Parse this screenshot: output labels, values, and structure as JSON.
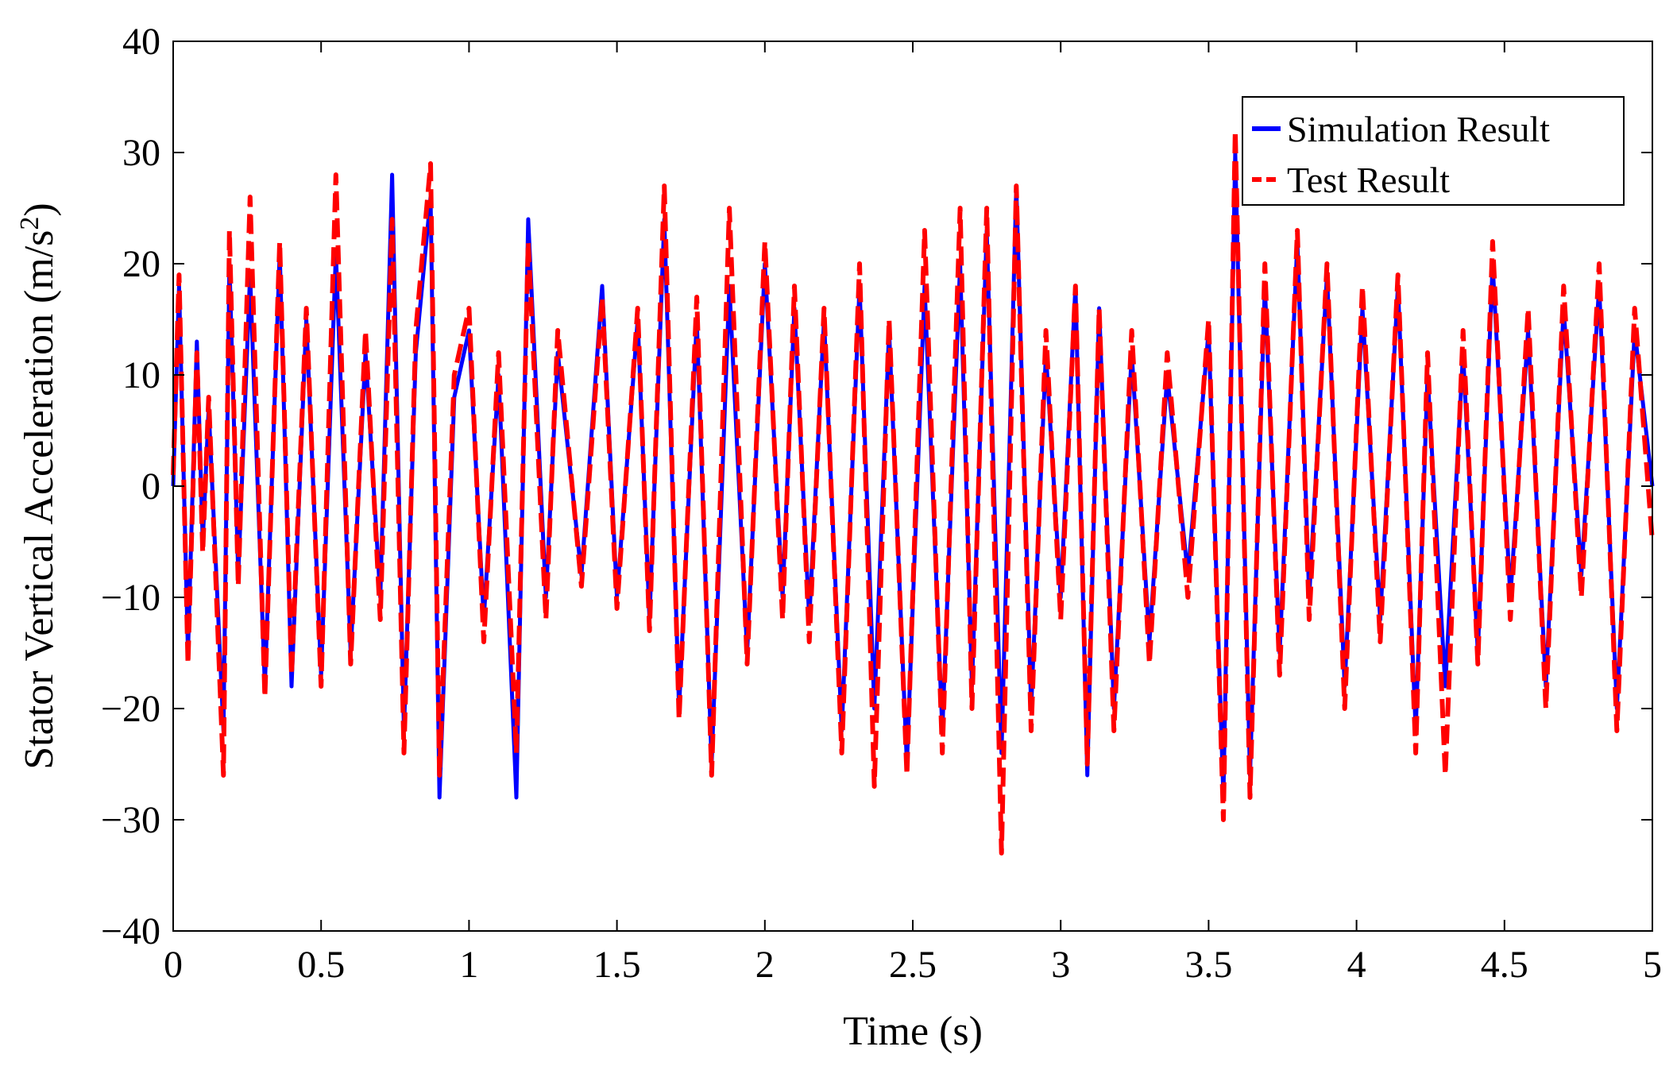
{
  "chart_data": {
    "type": "line",
    "title": "",
    "xlabel": "Time (s)",
    "ylabel": "Stator Vertical Acceleration (m/s",
    "ylabel_superscript": "2",
    "ylabel_suffix": ")",
    "xlim": [
      0,
      5
    ],
    "ylim": [
      -40,
      40
    ],
    "x_ticks": [
      0,
      0.5,
      1,
      1.5,
      2,
      2.5,
      3,
      3.5,
      4,
      4.5,
      5
    ],
    "x_tick_labels": [
      "0",
      "0.5",
      "1",
      "1.5",
      "2",
      "2.5",
      "3",
      "3.5",
      "4",
      "4.5",
      "5"
    ],
    "y_ticks": [
      -40,
      -30,
      -20,
      -10,
      0,
      10,
      20,
      30,
      40
    ],
    "y_tick_labels": [
      "−40",
      "−30",
      "−20",
      "−10",
      "0",
      "10",
      "20",
      "30",
      "40"
    ],
    "grid": false,
    "legend_position": "top-right",
    "series": [
      {
        "name": "Simulation Result",
        "color": "#0000ff",
        "style": "solid",
        "x": [
          0,
          0.02,
          0.05,
          0.08,
          0.1,
          0.12,
          0.17,
          0.19,
          0.22,
          0.26,
          0.31,
          0.36,
          0.4,
          0.45,
          0.5,
          0.55,
          0.6,
          0.65,
          0.7,
          0.74,
          0.78,
          0.82,
          0.87,
          0.9,
          0.95,
          1.0,
          1.05,
          1.1,
          1.16,
          1.2,
          1.26,
          1.3,
          1.38,
          1.45,
          1.5,
          1.57,
          1.61,
          1.66,
          1.71,
          1.77,
          1.82,
          1.88,
          1.94,
          2.0,
          2.06,
          2.1,
          2.15,
          2.2,
          2.26,
          2.32,
          2.37,
          2.42,
          2.48,
          2.54,
          2.6,
          2.66,
          2.7,
          2.75,
          2.8,
          2.85,
          2.9,
          2.95,
          3.0,
          3.05,
          3.09,
          3.13,
          3.18,
          3.24,
          3.3,
          3.36,
          3.43,
          3.5,
          3.55,
          3.59,
          3.64,
          3.69,
          3.74,
          3.8,
          3.84,
          3.9,
          3.96,
          4.02,
          4.08,
          4.14,
          4.2,
          4.24,
          4.3,
          4.36,
          4.41,
          4.46,
          4.52,
          4.58,
          4.64,
          4.7,
          4.76,
          4.82,
          4.88,
          4.94,
          5.0
        ],
        "y": [
          0,
          18,
          -15,
          13,
          -5,
          7,
          -22,
          20,
          -8,
          19,
          -18,
          21,
          -18,
          15,
          -17,
          21,
          -15,
          12,
          -10,
          28,
          -22,
          12,
          26,
          -28,
          8,
          14,
          -12,
          10,
          -28,
          24,
          -10,
          12,
          -8,
          18,
          -10,
          15,
          -12,
          24,
          -20,
          15,
          -25,
          18,
          -15,
          20,
          -10,
          16,
          -12,
          15,
          -22,
          18,
          -20,
          14,
          -25,
          18,
          -22,
          20,
          -18,
          23,
          -24,
          27,
          -20,
          12,
          -10,
          18,
          -26,
          16,
          -20,
          12,
          -14,
          10,
          -8,
          14,
          -28,
          30,
          -26,
          18,
          -15,
          22,
          -10,
          19,
          -18,
          16,
          -12,
          18,
          -22,
          10,
          -18,
          12,
          -15,
          20,
          -10,
          14,
          -18,
          16,
          -8,
          18,
          -20,
          14,
          0
        ]
      },
      {
        "name": "Test Result",
        "color": "#ff0000",
        "style": "dashed",
        "x": [
          0,
          0.02,
          0.05,
          0.08,
          0.1,
          0.12,
          0.17,
          0.19,
          0.22,
          0.26,
          0.31,
          0.36,
          0.4,
          0.45,
          0.5,
          0.55,
          0.6,
          0.65,
          0.7,
          0.74,
          0.78,
          0.82,
          0.87,
          0.9,
          0.95,
          1.0,
          1.05,
          1.1,
          1.16,
          1.2,
          1.26,
          1.3,
          1.38,
          1.45,
          1.5,
          1.57,
          1.61,
          1.66,
          1.71,
          1.77,
          1.82,
          1.88,
          1.94,
          2.0,
          2.06,
          2.1,
          2.15,
          2.2,
          2.26,
          2.32,
          2.37,
          2.42,
          2.48,
          2.54,
          2.6,
          2.66,
          2.7,
          2.75,
          2.8,
          2.85,
          2.9,
          2.95,
          3.0,
          3.05,
          3.09,
          3.13,
          3.18,
          3.24,
          3.3,
          3.36,
          3.43,
          3.5,
          3.55,
          3.59,
          3.64,
          3.69,
          3.74,
          3.8,
          3.84,
          3.9,
          3.96,
          4.02,
          4.08,
          4.14,
          4.2,
          4.24,
          4.3,
          4.36,
          4.41,
          4.46,
          4.52,
          4.58,
          4.64,
          4.7,
          4.76,
          4.82,
          4.88,
          4.94,
          5.0
        ],
        "y": [
          1,
          19,
          -16,
          12,
          -6,
          8,
          -26,
          23,
          -9,
          26,
          -19,
          22,
          -17,
          16,
          -18,
          28,
          -16,
          14,
          -12,
          24,
          -24,
          14,
          29,
          -26,
          10,
          16,
          -14,
          12,
          -24,
          22,
          -12,
          14,
          -9,
          17,
          -11,
          16,
          -13,
          27,
          -21,
          17,
          -26,
          25,
          -16,
          22,
          -12,
          18,
          -14,
          16,
          -24,
          20,
          -27,
          15,
          -26,
          23,
          -24,
          25,
          -20,
          25,
          -33,
          27,
          -22,
          14,
          -12,
          18,
          -25,
          16,
          -22,
          14,
          -16,
          12,
          -10,
          15,
          -30,
          32,
          -28,
          20,
          -17,
          23,
          -12,
          20,
          -20,
          18,
          -14,
          19,
          -24,
          12,
          -26,
          14,
          -16,
          22,
          -12,
          16,
          -20,
          18,
          -10,
          20,
          -22,
          16,
          -5
        ]
      }
    ]
  }
}
